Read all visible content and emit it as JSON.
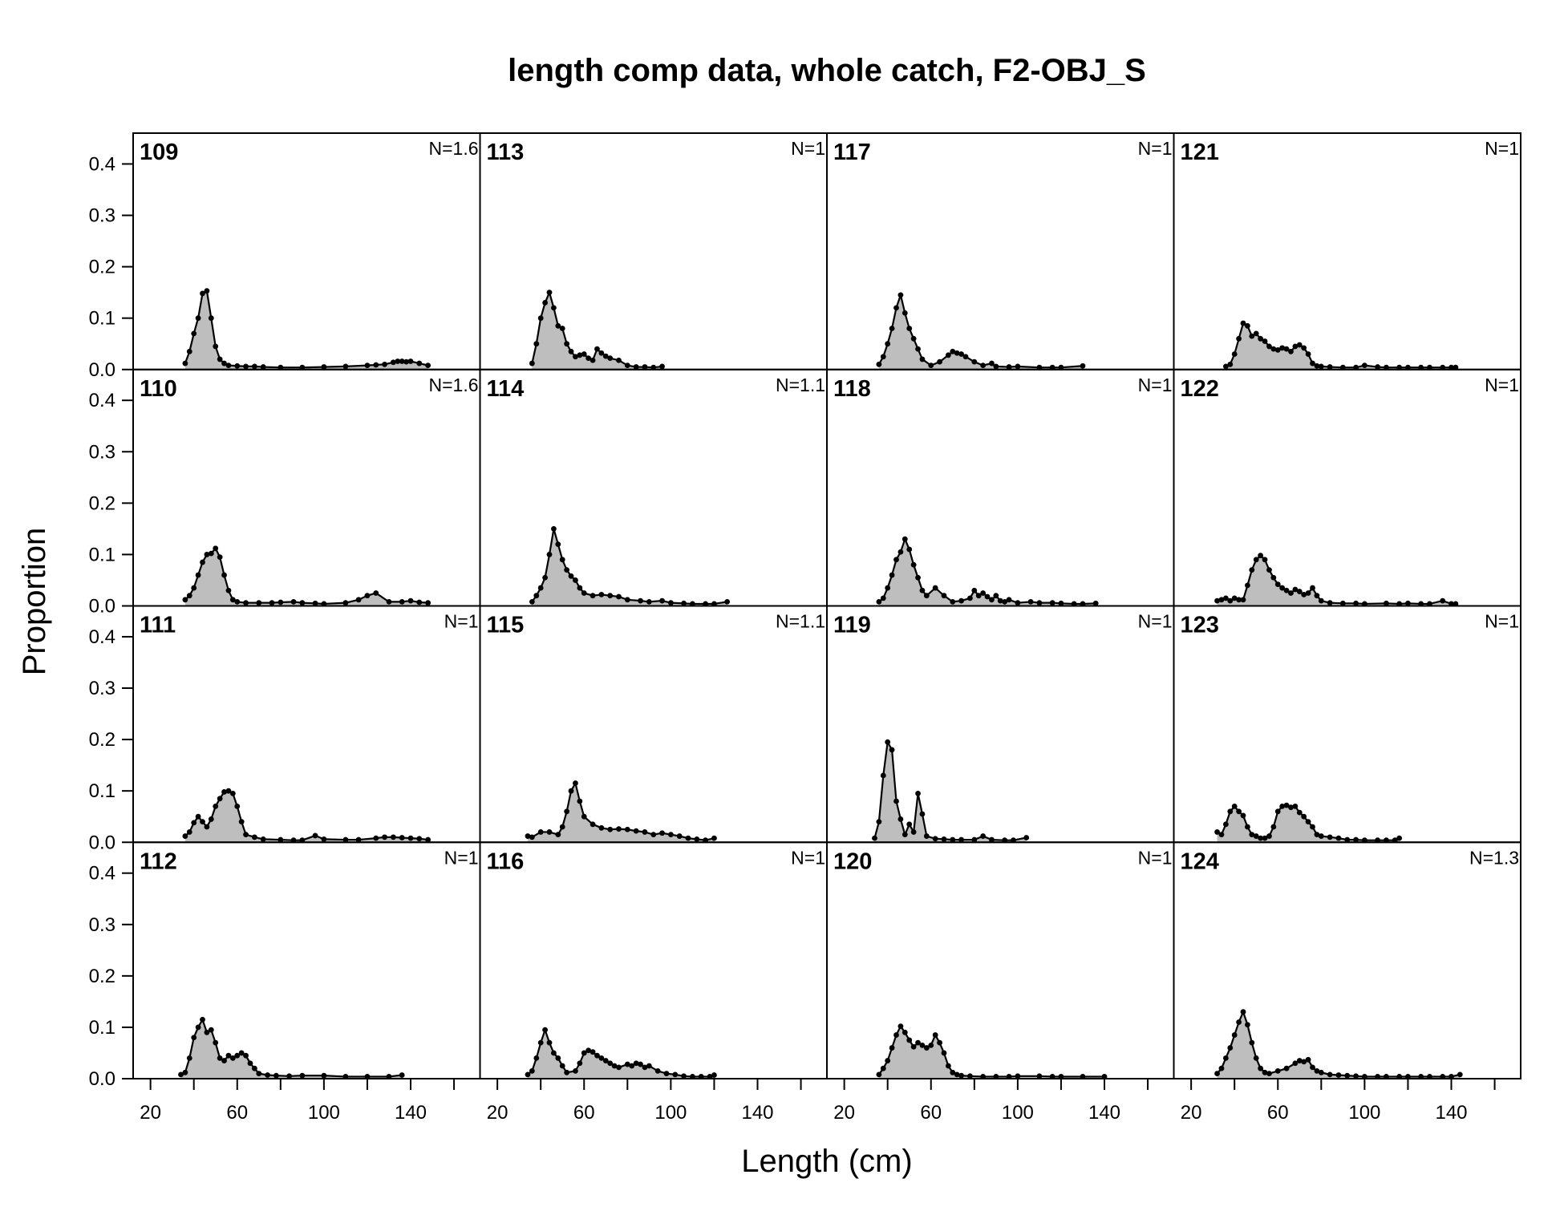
{
  "chart_data": {
    "type": "area",
    "title": "length comp data, whole catch, F2-OBJ_S",
    "xlabel": "Length (cm)",
    "ylabel": "Proportion",
    "xlim": [
      12,
      172
    ],
    "ylim": [
      0,
      0.46
    ],
    "x_ticks": [
      20,
      60,
      100,
      140
    ],
    "y_ticks": [
      "0.0",
      "0.1",
      "0.2",
      "0.3",
      "0.4"
    ],
    "layout": {
      "columns": 4,
      "rows": 4,
      "fill_order": "column-major"
    },
    "colors": {
      "fill": "#bebebe",
      "line": "#000000"
    },
    "panels": [
      {
        "label": "109",
        "n_label": "N=1.6",
        "x": [
          36,
          38,
          40,
          42,
          44,
          46,
          48,
          50,
          52,
          54,
          56,
          60,
          64,
          68,
          72,
          80,
          90,
          100,
          110,
          120,
          124,
          128,
          132,
          134,
          136,
          138,
          140,
          144,
          148
        ],
        "y": [
          0.012,
          0.035,
          0.07,
          0.1,
          0.148,
          0.153,
          0.1,
          0.045,
          0.02,
          0.012,
          0.008,
          0.007,
          0.006,
          0.006,
          0.005,
          0.004,
          0.004,
          0.005,
          0.006,
          0.008,
          0.009,
          0.01,
          0.014,
          0.016,
          0.016,
          0.015,
          0.016,
          0.012,
          0.008
        ]
      },
      {
        "label": "110",
        "n_label": "N=1.6",
        "x": [
          36,
          38,
          40,
          42,
          44,
          46,
          48,
          50,
          52,
          54,
          56,
          58,
          60,
          64,
          70,
          76,
          80,
          86,
          90,
          96,
          100,
          110,
          116,
          120,
          124,
          130,
          136,
          140,
          144,
          148
        ],
        "y": [
          0.012,
          0.02,
          0.035,
          0.06,
          0.085,
          0.1,
          0.102,
          0.112,
          0.095,
          0.06,
          0.03,
          0.012,
          0.008,
          0.006,
          0.006,
          0.006,
          0.007,
          0.008,
          0.006,
          0.005,
          0.004,
          0.006,
          0.012,
          0.02,
          0.025,
          0.008,
          0.008,
          0.01,
          0.007,
          0.006
        ]
      },
      {
        "label": "111",
        "n_label": "N=1",
        "x": [
          36,
          38,
          40,
          42,
          44,
          46,
          48,
          50,
          52,
          54,
          56,
          58,
          60,
          62,
          64,
          68,
          72,
          80,
          86,
          90,
          96,
          100,
          110,
          116,
          124,
          128,
          132,
          136,
          140,
          144,
          148
        ],
        "y": [
          0.012,
          0.02,
          0.038,
          0.05,
          0.04,
          0.03,
          0.045,
          0.07,
          0.085,
          0.098,
          0.1,
          0.095,
          0.07,
          0.04,
          0.015,
          0.01,
          0.006,
          0.005,
          0.004,
          0.004,
          0.013,
          0.006,
          0.005,
          0.005,
          0.008,
          0.01,
          0.01,
          0.009,
          0.008,
          0.007,
          0.005
        ]
      },
      {
        "label": "112",
        "n_label": "N=1",
        "x": [
          34,
          36,
          38,
          40,
          42,
          44,
          46,
          48,
          50,
          52,
          54,
          56,
          58,
          60,
          62,
          64,
          66,
          68,
          70,
          74,
          78,
          84,
          90,
          100,
          110,
          120,
          130,
          136
        ],
        "y": [
          0.008,
          0.012,
          0.04,
          0.08,
          0.1,
          0.115,
          0.09,
          0.095,
          0.07,
          0.04,
          0.035,
          0.045,
          0.04,
          0.045,
          0.05,
          0.045,
          0.03,
          0.02,
          0.01,
          0.007,
          0.006,
          0.005,
          0.006,
          0.006,
          0.004,
          0.004,
          0.004,
          0.007
        ]
      },
      {
        "label": "113",
        "n_label": "N=1",
        "x": [
          36,
          38,
          40,
          42,
          44,
          46,
          48,
          50,
          52,
          54,
          56,
          58,
          60,
          62,
          64,
          66,
          68,
          70,
          72,
          76,
          80,
          84,
          88,
          92,
          96
        ],
        "y": [
          0.012,
          0.05,
          0.1,
          0.13,
          0.15,
          0.12,
          0.085,
          0.08,
          0.05,
          0.035,
          0.025,
          0.028,
          0.03,
          0.022,
          0.018,
          0.04,
          0.032,
          0.026,
          0.022,
          0.018,
          0.008,
          0.005,
          0.005,
          0.004,
          0.006
        ]
      },
      {
        "label": "114",
        "n_label": "N=1.1",
        "x": [
          36,
          38,
          40,
          42,
          44,
          46,
          48,
          50,
          52,
          54,
          56,
          58,
          60,
          64,
          68,
          72,
          76,
          80,
          86,
          90,
          96,
          100,
          106,
          110,
          116,
          120,
          126
        ],
        "y": [
          0.008,
          0.02,
          0.035,
          0.055,
          0.1,
          0.15,
          0.12,
          0.09,
          0.07,
          0.058,
          0.05,
          0.035,
          0.025,
          0.02,
          0.022,
          0.02,
          0.018,
          0.012,
          0.01,
          0.008,
          0.01,
          0.006,
          0.005,
          0.004,
          0.004,
          0.004,
          0.008
        ]
      },
      {
        "label": "115",
        "n_label": "N=1.1",
        "x": [
          34,
          36,
          40,
          44,
          48,
          50,
          52,
          54,
          56,
          58,
          60,
          64,
          68,
          72,
          76,
          80,
          84,
          88,
          92,
          96,
          100,
          104,
          108,
          112,
          116,
          120
        ],
        "y": [
          0.012,
          0.01,
          0.02,
          0.02,
          0.015,
          0.03,
          0.06,
          0.1,
          0.115,
          0.08,
          0.05,
          0.035,
          0.028,
          0.025,
          0.026,
          0.025,
          0.022,
          0.02,
          0.015,
          0.018,
          0.015,
          0.012,
          0.008,
          0.006,
          0.004,
          0.008
        ]
      },
      {
        "label": "116",
        "n_label": "N=1",
        "x": [
          34,
          36,
          38,
          40,
          42,
          44,
          46,
          48,
          50,
          52,
          56,
          58,
          60,
          62,
          64,
          66,
          68,
          70,
          72,
          74,
          76,
          80,
          82,
          84,
          86,
          88,
          90,
          94,
          98,
          102,
          106,
          110,
          114,
          118,
          120
        ],
        "y": [
          0.008,
          0.015,
          0.04,
          0.07,
          0.095,
          0.07,
          0.05,
          0.04,
          0.025,
          0.012,
          0.015,
          0.03,
          0.05,
          0.055,
          0.052,
          0.045,
          0.04,
          0.035,
          0.03,
          0.025,
          0.022,
          0.028,
          0.025,
          0.03,
          0.028,
          0.022,
          0.025,
          0.015,
          0.01,
          0.008,
          0.005,
          0.004,
          0.004,
          0.004,
          0.007
        ]
      },
      {
        "label": "117",
        "n_label": "N=1",
        "x": [
          36,
          38,
          40,
          42,
          44,
          46,
          48,
          50,
          52,
          54,
          56,
          60,
          64,
          68,
          70,
          72,
          74,
          76,
          80,
          84,
          88,
          90,
          96,
          100,
          110,
          116,
          120,
          130
        ],
        "y": [
          0.01,
          0.025,
          0.05,
          0.08,
          0.12,
          0.145,
          0.11,
          0.08,
          0.06,
          0.04,
          0.02,
          0.008,
          0.015,
          0.028,
          0.035,
          0.032,
          0.03,
          0.025,
          0.015,
          0.008,
          0.012,
          0.006,
          0.005,
          0.006,
          0.004,
          0.004,
          0.004,
          0.007
        ]
      },
      {
        "label": "118",
        "n_label": "N=1",
        "x": [
          36,
          38,
          40,
          42,
          44,
          46,
          48,
          50,
          52,
          54,
          56,
          58,
          62,
          66,
          70,
          74,
          78,
          80,
          82,
          84,
          86,
          88,
          90,
          92,
          94,
          96,
          100,
          106,
          110,
          116,
          120,
          126,
          130,
          136
        ],
        "y": [
          0.008,
          0.015,
          0.035,
          0.06,
          0.09,
          0.105,
          0.13,
          0.11,
          0.08,
          0.055,
          0.03,
          0.02,
          0.035,
          0.02,
          0.008,
          0.01,
          0.015,
          0.03,
          0.02,
          0.025,
          0.018,
          0.012,
          0.02,
          0.01,
          0.008,
          0.012,
          0.006,
          0.008,
          0.006,
          0.006,
          0.005,
          0.004,
          0.004,
          0.005
        ]
      },
      {
        "label": "119",
        "n_label": "N=1",
        "x": [
          34,
          36,
          38,
          40,
          42,
          44,
          46,
          48,
          50,
          52,
          54,
          56,
          58,
          62,
          66,
          70,
          74,
          80,
          84,
          88,
          94,
          98,
          104
        ],
        "y": [
          0.008,
          0.04,
          0.13,
          0.195,
          0.18,
          0.08,
          0.045,
          0.015,
          0.035,
          0.02,
          0.095,
          0.055,
          0.012,
          0.007,
          0.006,
          0.005,
          0.005,
          0.005,
          0.012,
          0.005,
          0.004,
          0.004,
          0.009
        ]
      },
      {
        "label": "120",
        "n_label": "N=1",
        "x": [
          36,
          38,
          40,
          42,
          44,
          46,
          48,
          50,
          52,
          54,
          56,
          58,
          60,
          62,
          64,
          66,
          68,
          70,
          72,
          74,
          78,
          84,
          90,
          96,
          100,
          110,
          116,
          120,
          130,
          140
        ],
        "y": [
          0.008,
          0.02,
          0.035,
          0.06,
          0.085,
          0.102,
          0.09,
          0.075,
          0.062,
          0.07,
          0.065,
          0.06,
          0.065,
          0.085,
          0.07,
          0.05,
          0.025,
          0.012,
          0.008,
          0.006,
          0.005,
          0.004,
          0.004,
          0.004,
          0.005,
          0.005,
          0.004,
          0.004,
          0.004,
          0.004
        ]
      },
      {
        "label": "121",
        "n_label": "N=1",
        "x": [
          36,
          38,
          40,
          42,
          44,
          46,
          48,
          50,
          52,
          54,
          56,
          58,
          60,
          62,
          64,
          66,
          68,
          70,
          72,
          74,
          76,
          78,
          80,
          84,
          90,
          96,
          100,
          106,
          110,
          116,
          120,
          126,
          130,
          136,
          140,
          142
        ],
        "y": [
          0.006,
          0.01,
          0.03,
          0.06,
          0.09,
          0.085,
          0.065,
          0.07,
          0.06,
          0.055,
          0.045,
          0.04,
          0.038,
          0.042,
          0.04,
          0.035,
          0.045,
          0.048,
          0.042,
          0.03,
          0.012,
          0.007,
          0.006,
          0.005,
          0.004,
          0.004,
          0.008,
          0.005,
          0.004,
          0.004,
          0.004,
          0.004,
          0.004,
          0.004,
          0.004,
          0.004
        ]
      },
      {
        "label": "122",
        "n_label": "N=1",
        "x": [
          32,
          34,
          36,
          38,
          40,
          42,
          44,
          46,
          48,
          50,
          52,
          54,
          56,
          58,
          60,
          62,
          64,
          66,
          68,
          70,
          72,
          74,
          76,
          78,
          80,
          84,
          90,
          96,
          100,
          110,
          116,
          120,
          126,
          130,
          136,
          140,
          142
        ],
        "y": [
          0.01,
          0.012,
          0.015,
          0.01,
          0.015,
          0.012,
          0.012,
          0.04,
          0.07,
          0.09,
          0.098,
          0.09,
          0.07,
          0.055,
          0.042,
          0.035,
          0.03,
          0.025,
          0.032,
          0.028,
          0.022,
          0.025,
          0.035,
          0.02,
          0.01,
          0.006,
          0.005,
          0.005,
          0.004,
          0.005,
          0.004,
          0.005,
          0.004,
          0.004,
          0.01,
          0.004,
          0.004
        ]
      },
      {
        "label": "123",
        "n_label": "N=1",
        "x": [
          32,
          34,
          36,
          38,
          40,
          42,
          44,
          46,
          48,
          50,
          52,
          54,
          56,
          58,
          60,
          62,
          64,
          66,
          68,
          70,
          72,
          74,
          76,
          78,
          80,
          84,
          88,
          92,
          96,
          100,
          106,
          110,
          114,
          116
        ],
        "y": [
          0.02,
          0.015,
          0.035,
          0.06,
          0.07,
          0.06,
          0.052,
          0.03,
          0.015,
          0.012,
          0.008,
          0.008,
          0.012,
          0.03,
          0.06,
          0.07,
          0.072,
          0.068,
          0.07,
          0.058,
          0.05,
          0.04,
          0.03,
          0.015,
          0.012,
          0.01,
          0.008,
          0.005,
          0.005,
          0.004,
          0.004,
          0.004,
          0.004,
          0.008
        ]
      },
      {
        "label": "124",
        "n_label": "N=1.3",
        "x": [
          32,
          34,
          36,
          38,
          40,
          42,
          44,
          46,
          48,
          50,
          52,
          54,
          56,
          60,
          64,
          68,
          70,
          72,
          74,
          76,
          78,
          80,
          84,
          88,
          92,
          96,
          100,
          106,
          110,
          116,
          120,
          126,
          130,
          136,
          140,
          144
        ],
        "y": [
          0.01,
          0.02,
          0.04,
          0.06,
          0.085,
          0.11,
          0.13,
          0.105,
          0.07,
          0.04,
          0.02,
          0.012,
          0.01,
          0.015,
          0.02,
          0.03,
          0.035,
          0.033,
          0.037,
          0.022,
          0.015,
          0.012,
          0.008,
          0.007,
          0.006,
          0.005,
          0.004,
          0.004,
          0.004,
          0.004,
          0.004,
          0.004,
          0.004,
          0.004,
          0.004,
          0.008
        ]
      }
    ]
  }
}
